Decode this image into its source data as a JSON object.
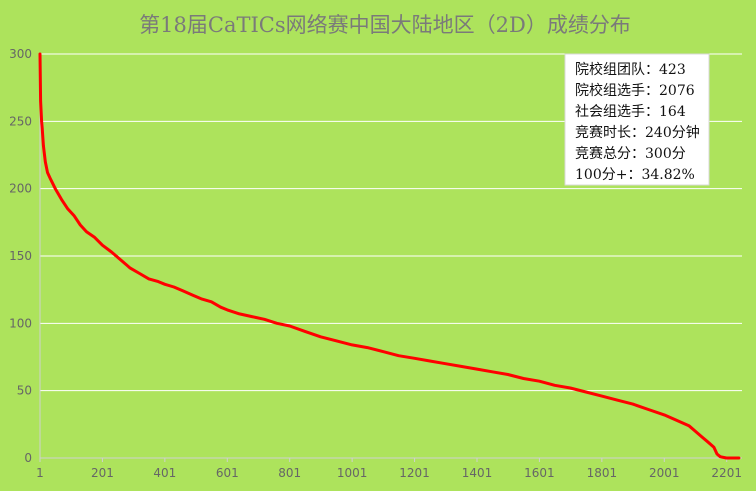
{
  "chart_data": {
    "type": "line",
    "title": "第18届CaTICs网络赛中国大陆地区（2D）成绩分布",
    "xlabel": "",
    "ylabel": "",
    "xlim": [
      1,
      2250
    ],
    "ylim": [
      0,
      300
    ],
    "x_ticks": [
      1,
      201,
      401,
      601,
      801,
      1001,
      1201,
      1401,
      1601,
      1801,
      2001,
      2201
    ],
    "y_ticks": [
      0,
      50,
      100,
      150,
      200,
      250,
      300
    ],
    "grid": true,
    "line_color": "#ff0000",
    "background_color": "#ade35c",
    "series": [
      {
        "x": [
          1,
          3,
          6,
          8,
          12,
          18,
          25,
          35,
          50,
          70,
          90,
          110,
          130,
          150,
          175,
          201,
          230,
          260,
          290,
          320,
          350,
          380,
          401,
          430,
          460,
          490,
          520,
          550,
          580,
          601,
          640,
          680,
          720,
          760,
          801,
          850,
          900,
          950,
          1001,
          1050,
          1100,
          1150,
          1201,
          1250,
          1300,
          1350,
          1401,
          1450,
          1500,
          1550,
          1601,
          1650,
          1700,
          1750,
          1801,
          1850,
          1900,
          1950,
          2001,
          2040,
          2080,
          2100,
          2120,
          2140,
          2160,
          2170,
          2180,
          2200,
          2220,
          2240
        ],
        "y": [
          300,
          265,
          250,
          245,
          232,
          220,
          212,
          207,
          200,
          192,
          185,
          180,
          173,
          168,
          164,
          158,
          153,
          147,
          141,
          137,
          133,
          131,
          129,
          127,
          124,
          121,
          118,
          116,
          112,
          110,
          107,
          105,
          103,
          100,
          98,
          94,
          90,
          87,
          84,
          82,
          79,
          76,
          74,
          72,
          70,
          68,
          66,
          64,
          62,
          59,
          57,
          54,
          52,
          49,
          46,
          43,
          40,
          36,
          32,
          28,
          24,
          20,
          16,
          12,
          8,
          3,
          1,
          0,
          0,
          0
        ]
      }
    ]
  },
  "info_box": {
    "lines": [
      "院校组团队：423",
      "院校组选手：2076",
      "社会组选手：164",
      "竞赛时长：240分钟",
      "竞赛总分：300分",
      "100分+：34.82%"
    ]
  }
}
